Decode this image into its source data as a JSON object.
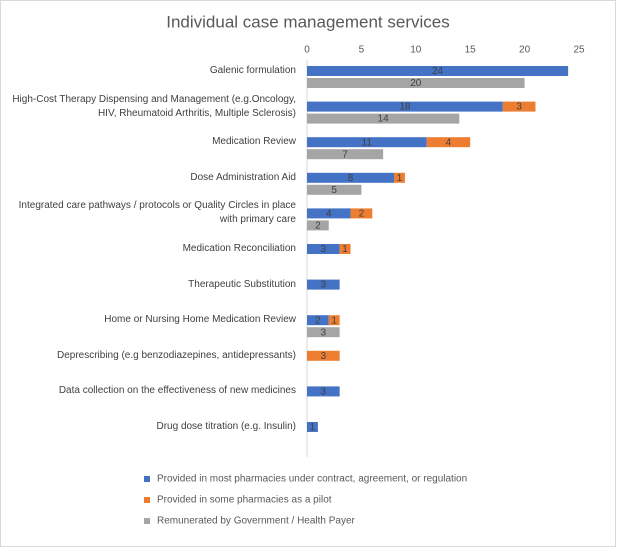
{
  "chart_data": {
    "type": "bar",
    "orientation": "horizontal",
    "stacked_series": [
      0,
      1
    ],
    "title": "Individual case management services",
    "categories": [
      "Galenic formulation",
      "High-Cost Therapy Dispensing and Management (e.g.Oncology, HIV, Rheumatoid Arthritis, Multiple Sclerosis)",
      "Medication Review",
      "Dose Administration Aid",
      "Integrated care pathways / protocols or Quality Circles in place with primary care",
      "Medication Reconciliation",
      "Therapeutic Substitution",
      "Home or Nursing Home Medication Review",
      "Deprescribing (e.g benzodiazepines, antidepressants)",
      "Data collection on the effectiveness of new medicines",
      "Drug dose titration (e.g. Insulin)"
    ],
    "series": [
      {
        "name": "Provided in most pharmacies under contract, agreement, or regulation",
        "color": "#4472c4",
        "values": [
          24,
          18,
          11,
          8,
          4,
          3,
          3,
          2,
          null,
          3,
          1
        ]
      },
      {
        "name": "Provided in some pharmacies as a pilot",
        "color": "#ed7d31",
        "values": [
          null,
          3,
          4,
          1,
          2,
          1,
          null,
          1,
          3,
          null,
          null
        ]
      },
      {
        "name": "Remunerated by Government / Health Payer",
        "color": "#a5a5a5",
        "values": [
          20,
          14,
          7,
          5,
          2,
          null,
          null,
          3,
          null,
          null,
          null
        ]
      }
    ],
    "xlim": [
      0,
      25
    ],
    "xticks": [
      0,
      5,
      10,
      15,
      20,
      25
    ],
    "data_labels": true,
    "legend": "bottom"
  }
}
